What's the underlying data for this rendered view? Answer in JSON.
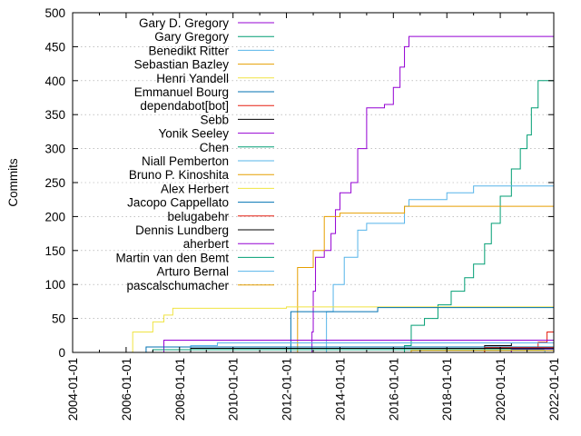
{
  "chart_data": {
    "type": "line",
    "title": "",
    "xlabel": "",
    "ylabel": "Commits",
    "x_range": [
      "2004-01-01",
      "2022-01-01"
    ],
    "ylim": [
      0,
      500
    ],
    "y_ticks": [
      0,
      50,
      100,
      150,
      200,
      250,
      300,
      350,
      400,
      450,
      500
    ],
    "x_ticks": [
      "2004-01-01",
      "2006-01-01",
      "2008-01-01",
      "2010-01-01",
      "2012-01-01",
      "2014-01-01",
      "2016-01-01",
      "2018-01-01",
      "2020-01-01",
      "2022-01-01"
    ],
    "grid": "dotted horizontal at major y ticks",
    "legend_position": "top-left",
    "series": [
      {
        "name": "Gary D. Gregory",
        "color": "#9400d3",
        "points": [
          [
            "2012-12-01",
            0
          ],
          [
            "2012-12-15",
            30
          ],
          [
            "2013-01-01",
            90
          ],
          [
            "2013-02-01",
            140
          ],
          [
            "2013-06-01",
            150
          ],
          [
            "2013-09-01",
            175
          ],
          [
            "2013-11-01",
            210
          ],
          [
            "2014-01-01",
            235
          ],
          [
            "2014-06-01",
            250
          ],
          [
            "2014-09-01",
            300
          ],
          [
            "2015-01-01",
            360
          ],
          [
            "2015-09-01",
            365
          ],
          [
            "2016-01-01",
            390
          ],
          [
            "2016-04-01",
            420
          ],
          [
            "2016-06-01",
            450
          ],
          [
            "2016-08-01",
            465
          ],
          [
            "2022-01-01",
            465
          ]
        ]
      },
      {
        "name": "Gary Gregory",
        "color": "#009e73",
        "points": [
          [
            "2016-01-01",
            0
          ],
          [
            "2016-06-01",
            10
          ],
          [
            "2016-09-01",
            40
          ],
          [
            "2017-03-01",
            50
          ],
          [
            "2017-09-01",
            70
          ],
          [
            "2018-03-01",
            90
          ],
          [
            "2018-09-01",
            110
          ],
          [
            "2019-01-01",
            130
          ],
          [
            "2019-06-01",
            160
          ],
          [
            "2019-09-01",
            190
          ],
          [
            "2020-01-01",
            230
          ],
          [
            "2020-06-01",
            270
          ],
          [
            "2020-10-01",
            300
          ],
          [
            "2021-01-01",
            320
          ],
          [
            "2021-03-01",
            360
          ],
          [
            "2021-06-01",
            400
          ],
          [
            "2022-01-01",
            415
          ]
        ]
      },
      {
        "name": "Benedikt Ritter",
        "color": "#56b4e9",
        "points": [
          [
            "2013-05-01",
            0
          ],
          [
            "2013-07-01",
            60
          ],
          [
            "2013-10-01",
            100
          ],
          [
            "2014-03-01",
            140
          ],
          [
            "2014-09-01",
            180
          ],
          [
            "2015-01-01",
            190
          ],
          [
            "2016-06-01",
            215
          ],
          [
            "2016-08-01",
            225
          ],
          [
            "2018-01-01",
            235
          ],
          [
            "2019-01-01",
            245
          ],
          [
            "2022-01-01",
            245
          ]
        ]
      },
      {
        "name": "Sebastian Bazley",
        "color": "#e69f00",
        "points": [
          [
            "2012-04-01",
            0
          ],
          [
            "2012-06-01",
            125
          ],
          [
            "2013-01-01",
            150
          ],
          [
            "2013-06-01",
            200
          ],
          [
            "2014-01-01",
            205
          ],
          [
            "2016-06-01",
            215
          ],
          [
            "2022-01-01",
            215
          ]
        ]
      },
      {
        "name": "Henri Yandell",
        "color": "#f0e442",
        "points": [
          [
            "2005-12-01",
            0
          ],
          [
            "2006-04-01",
            30
          ],
          [
            "2007-01-01",
            45
          ],
          [
            "2007-06-01",
            55
          ],
          [
            "2007-10-01",
            65
          ],
          [
            "2012-01-01",
            67
          ],
          [
            "2022-01-01",
            67
          ]
        ]
      },
      {
        "name": "Emmanuel Bourg",
        "color": "#0072b2",
        "points": [
          [
            "2011-10-01",
            0
          ],
          [
            "2012-03-01",
            60
          ],
          [
            "2015-06-01",
            66
          ],
          [
            "2022-01-01",
            66
          ]
        ]
      },
      {
        "name": "dependabot[bot]",
        "color": "#e51e10",
        "points": [
          [
            "2019-06-01",
            0
          ],
          [
            "2020-06-01",
            5
          ],
          [
            "2021-06-01",
            15
          ],
          [
            "2021-10-01",
            30
          ],
          [
            "2022-01-01",
            50
          ]
        ]
      },
      {
        "name": "Sebb",
        "color": "#000000",
        "points": [
          [
            "2019-01-01",
            0
          ],
          [
            "2019-06-01",
            10
          ],
          [
            "2020-06-01",
            14
          ],
          [
            "2022-01-01",
            20
          ]
        ]
      },
      {
        "name": "Yonik Seeley",
        "color": "#9400d3",
        "points": [
          [
            "2007-01-01",
            0
          ],
          [
            "2007-06-01",
            18
          ],
          [
            "2022-01-01",
            18
          ]
        ]
      },
      {
        "name": "Chen",
        "color": "#009e73",
        "points": [
          [
            "2019-06-01",
            0
          ],
          [
            "2020-06-01",
            8
          ],
          [
            "2022-01-01",
            16
          ]
        ]
      },
      {
        "name": "Niall Pemberton",
        "color": "#56b4e9",
        "points": [
          [
            "2008-01-01",
            0
          ],
          [
            "2008-06-01",
            10
          ],
          [
            "2009-06-01",
            14
          ],
          [
            "2022-01-01",
            14
          ]
        ]
      },
      {
        "name": "Bruno P. Kinoshita",
        "color": "#e69f00",
        "points": [
          [
            "2017-01-01",
            0
          ],
          [
            "2018-01-01",
            6
          ],
          [
            "2022-01-01",
            12
          ]
        ]
      },
      {
        "name": "Alex Herbert",
        "color": "#f0e442",
        "points": [
          [
            "2019-01-01",
            0
          ],
          [
            "2020-01-01",
            6
          ],
          [
            "2022-01-01",
            10
          ]
        ]
      },
      {
        "name": "Jacopo Cappellato",
        "color": "#0072b2",
        "points": [
          [
            "2006-06-01",
            0
          ],
          [
            "2006-10-01",
            8
          ],
          [
            "2022-01-01",
            8
          ]
        ]
      },
      {
        "name": "belugabehr",
        "color": "#e51e10",
        "points": [
          [
            "2019-01-01",
            0
          ],
          [
            "2019-06-01",
            7
          ],
          [
            "2022-01-01",
            7
          ]
        ]
      },
      {
        "name": "Dennis Lundberg",
        "color": "#000000",
        "points": [
          [
            "2008-01-01",
            0
          ],
          [
            "2008-06-01",
            6
          ],
          [
            "2022-01-01",
            6
          ]
        ]
      },
      {
        "name": "aherbert",
        "color": "#9400d3",
        "points": [
          [
            "2019-06-01",
            0
          ],
          [
            "2020-06-01",
            5
          ],
          [
            "2022-01-01",
            5
          ]
        ]
      },
      {
        "name": "Martin van den Bemt",
        "color": "#009e73",
        "points": [
          [
            "2006-06-01",
            0
          ],
          [
            "2007-01-01",
            4
          ],
          [
            "2022-01-01",
            4
          ]
        ]
      },
      {
        "name": "Arturo Bernal",
        "color": "#56b4e9",
        "points": [
          [
            "2021-01-01",
            0
          ],
          [
            "2021-09-01",
            4
          ],
          [
            "2022-01-01",
            4
          ]
        ]
      },
      {
        "name": "pascalschumacher",
        "color": "#e69f00",
        "points": [
          [
            "2016-01-01",
            0
          ],
          [
            "2016-09-01",
            3
          ],
          [
            "2022-01-01",
            3
          ]
        ]
      }
    ]
  }
}
